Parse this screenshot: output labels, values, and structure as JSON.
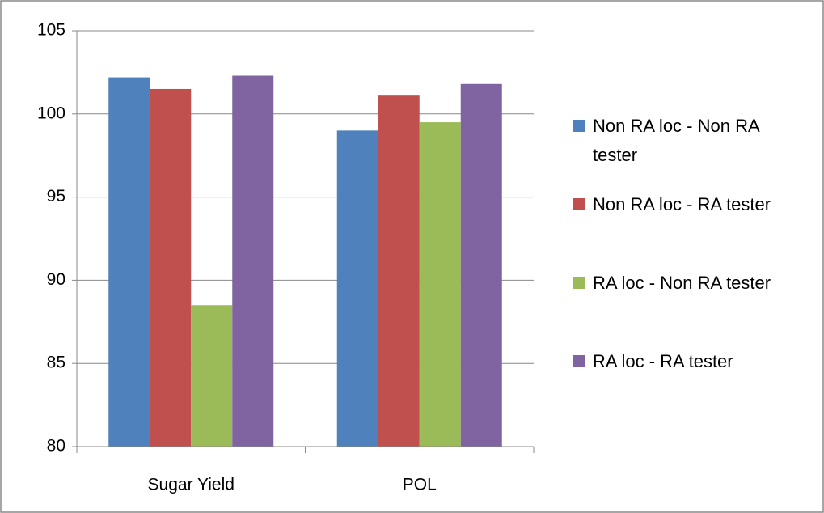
{
  "chart_data": {
    "type": "bar",
    "categories": [
      "Sugar Yield",
      "POL"
    ],
    "series": [
      {
        "name": "Non RA loc - Non RA tester",
        "color": "#4f81bd",
        "values": [
          102.2,
          99.0
        ]
      },
      {
        "name": "Non RA loc - RA tester",
        "color": "#c0504d",
        "values": [
          101.5,
          101.1
        ]
      },
      {
        "name": "RA loc - Non RA tester",
        "color": "#9bbb59",
        "values": [
          88.5,
          99.5
        ]
      },
      {
        "name": "RA loc - RA tester",
        "color": "#8064a2",
        "values": [
          102.3,
          101.8
        ]
      }
    ],
    "ylim": [
      80,
      105
    ],
    "yticks": [
      80,
      85,
      90,
      95,
      100,
      105
    ],
    "grid": true,
    "legend": "right"
  }
}
